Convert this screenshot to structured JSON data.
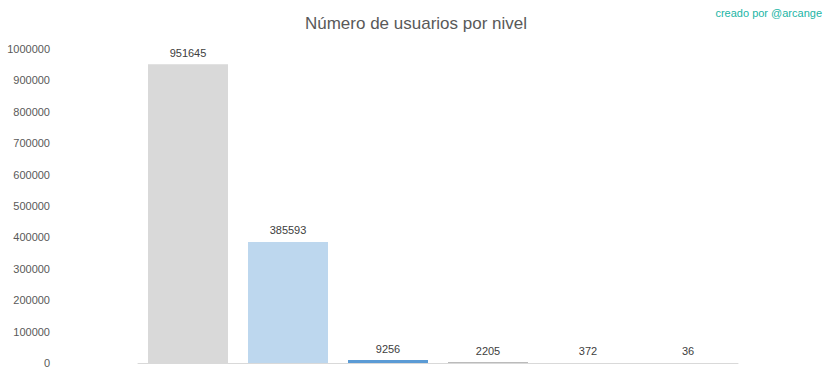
{
  "chart_data": {
    "type": "bar",
    "title": "Número de usuarios por nivel",
    "annotations": [
      "creado por @arcange"
    ],
    "categories": [
      null,
      null,
      null,
      null,
      null,
      null
    ],
    "values": [
      951645,
      385593,
      9256,
      2205,
      372,
      36
    ],
    "colors": [
      "#d9d9d9",
      "#bdd7ee",
      "#5b9bd5",
      "#a5a5a5",
      "#c00000",
      "#7030a0"
    ],
    "ylim": [
      0,
      1000000
    ],
    "yticks": [
      0,
      100000,
      200000,
      300000,
      400000,
      500000,
      600000,
      700000,
      800000,
      900000,
      1000000
    ],
    "grid": false,
    "data_labels": true,
    "tick_labels": "y"
  }
}
